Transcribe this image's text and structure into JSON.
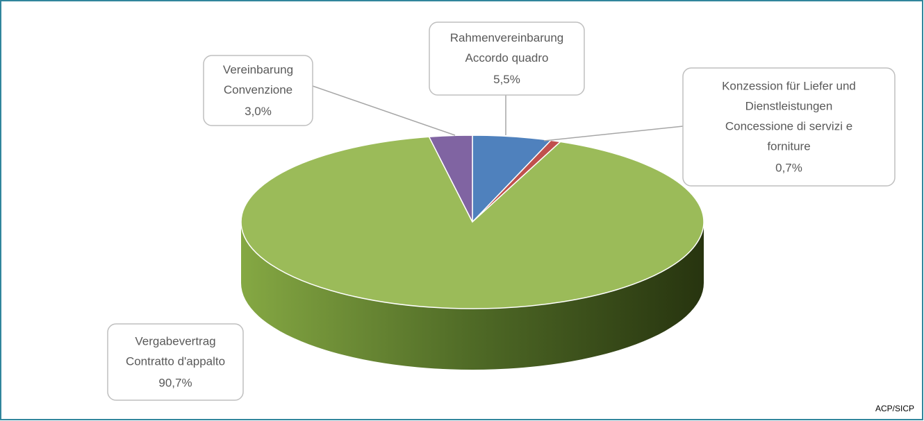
{
  "chart_data": {
    "type": "pie",
    "categories": [
      [
        "Rahmenvereinbarung",
        "Accordo quadro"
      ],
      [
        "Konzession für Liefer und",
        "Dienstleistungen",
        "Concessione di servizi e",
        "forniture"
      ],
      [
        "Vergabevertrag",
        "Contratto d'appalto"
      ],
      [
        "Vereinbarung",
        "Convenzione"
      ]
    ],
    "values": [
      5.5,
      0.7,
      90.7,
      3.0
    ],
    "value_labels": [
      "5,5%",
      "0,7%",
      "90,7%",
      "3,0%"
    ],
    "colors": [
      "#4f81bd",
      "#c0504d",
      "#9bbb59",
      "#8064a2"
    ],
    "source": "ACP/SICP"
  }
}
